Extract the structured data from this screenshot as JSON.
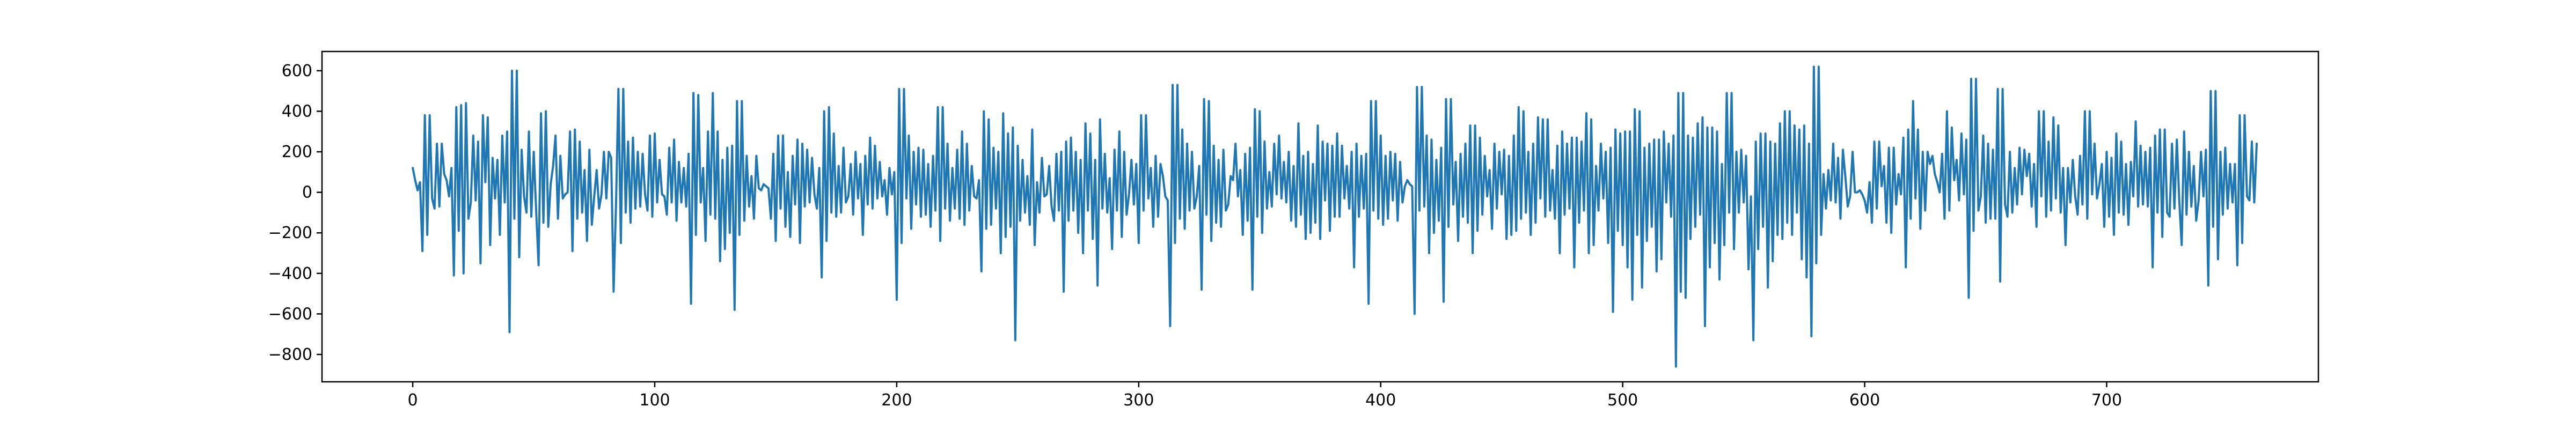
{
  "chart_data": {
    "type": "line",
    "title": "",
    "xlabel": "",
    "ylabel": "",
    "xlim": [
      -37.5,
      787.5
    ],
    "ylim": [
      -935,
      695
    ],
    "xticks": [
      0,
      100,
      200,
      300,
      400,
      500,
      600,
      700
    ],
    "yticks": [
      -800,
      -600,
      -400,
      -200,
      0,
      200,
      400,
      600
    ],
    "xtick_labels": [
      "0",
      "100",
      "200",
      "300",
      "400",
      "500",
      "600",
      "700"
    ],
    "ytick_labels": [
      "−800",
      "−600",
      "−400",
      "−200",
      "0",
      "200",
      "400",
      "600"
    ],
    "grid": false,
    "legend": "none",
    "series": [
      {
        "color": "#1f77b4",
        "x_start": 0,
        "x_step": 1,
        "values": [
          120,
          60,
          10,
          50,
          -290,
          380,
          -210,
          380,
          -30,
          -80,
          240,
          -70,
          240,
          90,
          60,
          -20,
          120,
          -410,
          420,
          -190,
          430,
          -400,
          440,
          -130,
          -50,
          280,
          -40,
          250,
          -350,
          380,
          50,
          370,
          -260,
          170,
          -30,
          160,
          -210,
          280,
          -50,
          300,
          -690,
          600,
          -130,
          600,
          -320,
          210,
          -20,
          -100,
          300,
          -120,
          200,
          -90,
          -360,
          390,
          -150,
          400,
          -170,
          40,
          130,
          280,
          -130,
          180,
          -30,
          -10,
          0,
          300,
          -290,
          310,
          -130,
          250,
          -100,
          110,
          -240,
          210,
          -160,
          -20,
          110,
          -80,
          -10,
          200,
          -30,
          200,
          170,
          -490,
          -60,
          510,
          -250,
          510,
          -100,
          250,
          -150,
          270,
          -80,
          200,
          -70,
          190,
          -10,
          -90,
          280,
          -120,
          290,
          -50,
          160,
          -10,
          -20,
          -110,
          220,
          -50,
          260,
          -140,
          150,
          -50,
          120,
          -70,
          190,
          -550,
          490,
          -210,
          480,
          -50,
          120,
          -240,
          300,
          -110,
          490,
          -130,
          300,
          -340,
          160,
          -280,
          220,
          -200,
          230,
          -580,
          450,
          -210,
          450,
          -140,
          180,
          -70,
          80,
          -130,
          180,
          20,
          10,
          40,
          30,
          20,
          -130,
          190,
          -240,
          280,
          -80,
          280,
          -170,
          100,
          -220,
          180,
          -60,
          260,
          -250,
          240,
          -70,
          210,
          -50,
          170,
          -10,
          -80,
          120,
          -420,
          400,
          -240,
          420,
          -100,
          290,
          -120,
          130,
          -100,
          220,
          -50,
          -20,
          140,
          -110,
          200,
          -30,
          140,
          -210,
          180,
          -60,
          270,
          -80,
          230,
          -30,
          150,
          -20,
          60,
          -110,
          120,
          -10,
          100,
          -530,
          510,
          -250,
          510,
          -30,
          280,
          -180,
          200,
          -60,
          220,
          -120,
          210,
          -110,
          140,
          -170,
          180,
          -90,
          420,
          -240,
          420,
          -80,
          240,
          -140,
          120,
          -80,
          210,
          -130,
          300,
          -160,
          240,
          -90,
          130,
          -20,
          -30,
          60,
          -390,
          400,
          -180,
          360,
          -160,
          220,
          -80,
          200,
          -300,
          390,
          -220,
          290,
          -170,
          320,
          -730,
          230,
          -140,
          160,
          -100,
          80,
          -160,
          310,
          -260,
          50,
          -100,
          170,
          -20,
          -10,
          130,
          -70,
          -140,
          190,
          -90,
          200,
          -490,
          250,
          -140,
          270,
          -90,
          200,
          -200,
          160,
          -300,
          340,
          -90,
          290,
          -230,
          160,
          -460,
          360,
          -80,
          190,
          -100,
          70,
          -280,
          210,
          -90,
          300,
          -220,
          200,
          -110,
          -10,
          160,
          -60,
          140,
          -250,
          380,
          -90,
          380,
          -30,
          120,
          -170,
          180,
          -120,
          140,
          80,
          -20,
          -40,
          -660,
          530,
          -250,
          530,
          -130,
          310,
          -180,
          240,
          -90,
          200,
          -80,
          -20,
          130,
          -480,
          460,
          -110,
          450,
          -240,
          230,
          -150,
          160,
          -170,
          210,
          -90,
          -60,
          80,
          60,
          240,
          -20,
          110,
          -210,
          190,
          -140,
          220,
          -480,
          410,
          -120,
          400,
          -200,
          250,
          -80,
          100,
          -70,
          240,
          -10,
          280,
          -30,
          150,
          -50,
          200,
          -140,
          130,
          -170,
          340,
          -110,
          180,
          -230,
          200,
          -200,
          140,
          -150,
          330,
          -230,
          250,
          -40,
          240,
          -190,
          230,
          -120,
          290,
          -120,
          230,
          -30,
          130,
          -80,
          200,
          -370,
          240,
          -120,
          180,
          -80,
          190,
          -550,
          450,
          -90,
          450,
          -130,
          280,
          -160,
          180,
          -130,
          200,
          -40,
          190,
          -140,
          150,
          -50,
          30,
          60,
          40,
          30,
          -600,
          520,
          -90,
          520,
          -70,
          280,
          -300,
          260,
          -200,
          160,
          -140,
          220,
          -540,
          460,
          -170,
          460,
          -60,
          150,
          -240,
          190,
          -120,
          240,
          -150,
          330,
          -300,
          330,
          -190,
          270,
          -110,
          180,
          -20,
          110,
          -180,
          240,
          -80,
          200,
          -10,
          210,
          -230,
          180,
          -210,
          280,
          -190,
          420,
          -130,
          400,
          -100,
          200,
          -210,
          240,
          -150,
          370,
          -30,
          360,
          -120,
          360,
          -90,
          110,
          -130,
          230,
          -300,
          300,
          -110,
          240,
          -80,
          270,
          -370,
          270,
          -150,
          250,
          -90,
          390,
          -300,
          360,
          -260,
          130,
          -90,
          240,
          -30,
          200,
          -250,
          220,
          -590,
          310,
          -190,
          290,
          -260,
          300,
          -370,
          300,
          -530,
          410,
          -210,
          400,
          -470,
          220,
          -240,
          240,
          -170,
          260,
          -390,
          260,
          -330,
          300,
          -50,
          240,
          -120,
          280,
          -860,
          490,
          -490,
          490,
          -520,
          280,
          -230,
          270,
          -170,
          340,
          -110,
          370,
          -660,
          320,
          -370,
          320,
          -250,
          300,
          -430,
          140,
          -260,
          490,
          -100,
          490,
          -280,
          200,
          -100,
          210,
          -50,
          180,
          -380,
          -20,
          -730,
          250,
          -280,
          290,
          -170,
          290,
          -470,
          250,
          -340,
          240,
          -210,
          340,
          -230,
          400,
          -150,
          400,
          -210,
          330,
          -100,
          310,
          -330,
          330,
          -420,
          240,
          -710,
          620,
          -350,
          620,
          -210,
          90,
          -80,
          110,
          -40,
          240,
          -50,
          170,
          -130,
          210,
          80,
          -70,
          -20,
          200,
          0,
          0,
          10,
          -10,
          -40,
          -100,
          50,
          -150,
          250,
          -80,
          250,
          30,
          130,
          -150,
          220,
          -200,
          220,
          -60,
          90,
          -10,
          270,
          -370,
          310,
          -130,
          450,
          -30,
          310,
          -180,
          200,
          -90,
          200,
          140,
          180,
          90,
          50,
          0,
          190,
          -130,
          400,
          -90,
          320,
          60,
          160,
          -40,
          290,
          -10,
          260,
          -520,
          560,
          -190,
          560,
          -90,
          -20,
          280,
          -150,
          240,
          -130,
          210,
          -130,
          510,
          -440,
          510,
          -60,
          -120,
          200,
          -100,
          120,
          -60,
          220,
          -10,
          210,
          80,
          190,
          -70,
          140,
          -170,
          400,
          -20,
          400,
          -120,
          250,
          -90,
          370,
          -30,
          330,
          -100,
          120,
          -260,
          120,
          -50,
          160,
          -20,
          -110,
          180,
          -60,
          400,
          -130,
          400,
          -10,
          240,
          -30,
          40,
          140,
          -170,
          200,
          -120,
          170,
          -210,
          290,
          -100,
          250,
          -110,
          140,
          -160,
          150,
          -20,
          350,
          -70,
          230,
          -60,
          200,
          -70,
          220,
          -370,
          280,
          -100,
          310,
          -220,
          310,
          -100,
          -120,
          240,
          -80,
          260,
          -40,
          -260,
          300,
          -110,
          200,
          -70,
          130,
          -140,
          -40,
          200,
          -20,
          210,
          -460,
          500,
          -170,
          500,
          -330,
          200,
          -110,
          220,
          -80,
          140,
          -50,
          140,
          -360,
          380,
          -250,
          380,
          -20,
          -40,
          250,
          -50,
          240
        ]
      }
    ]
  }
}
